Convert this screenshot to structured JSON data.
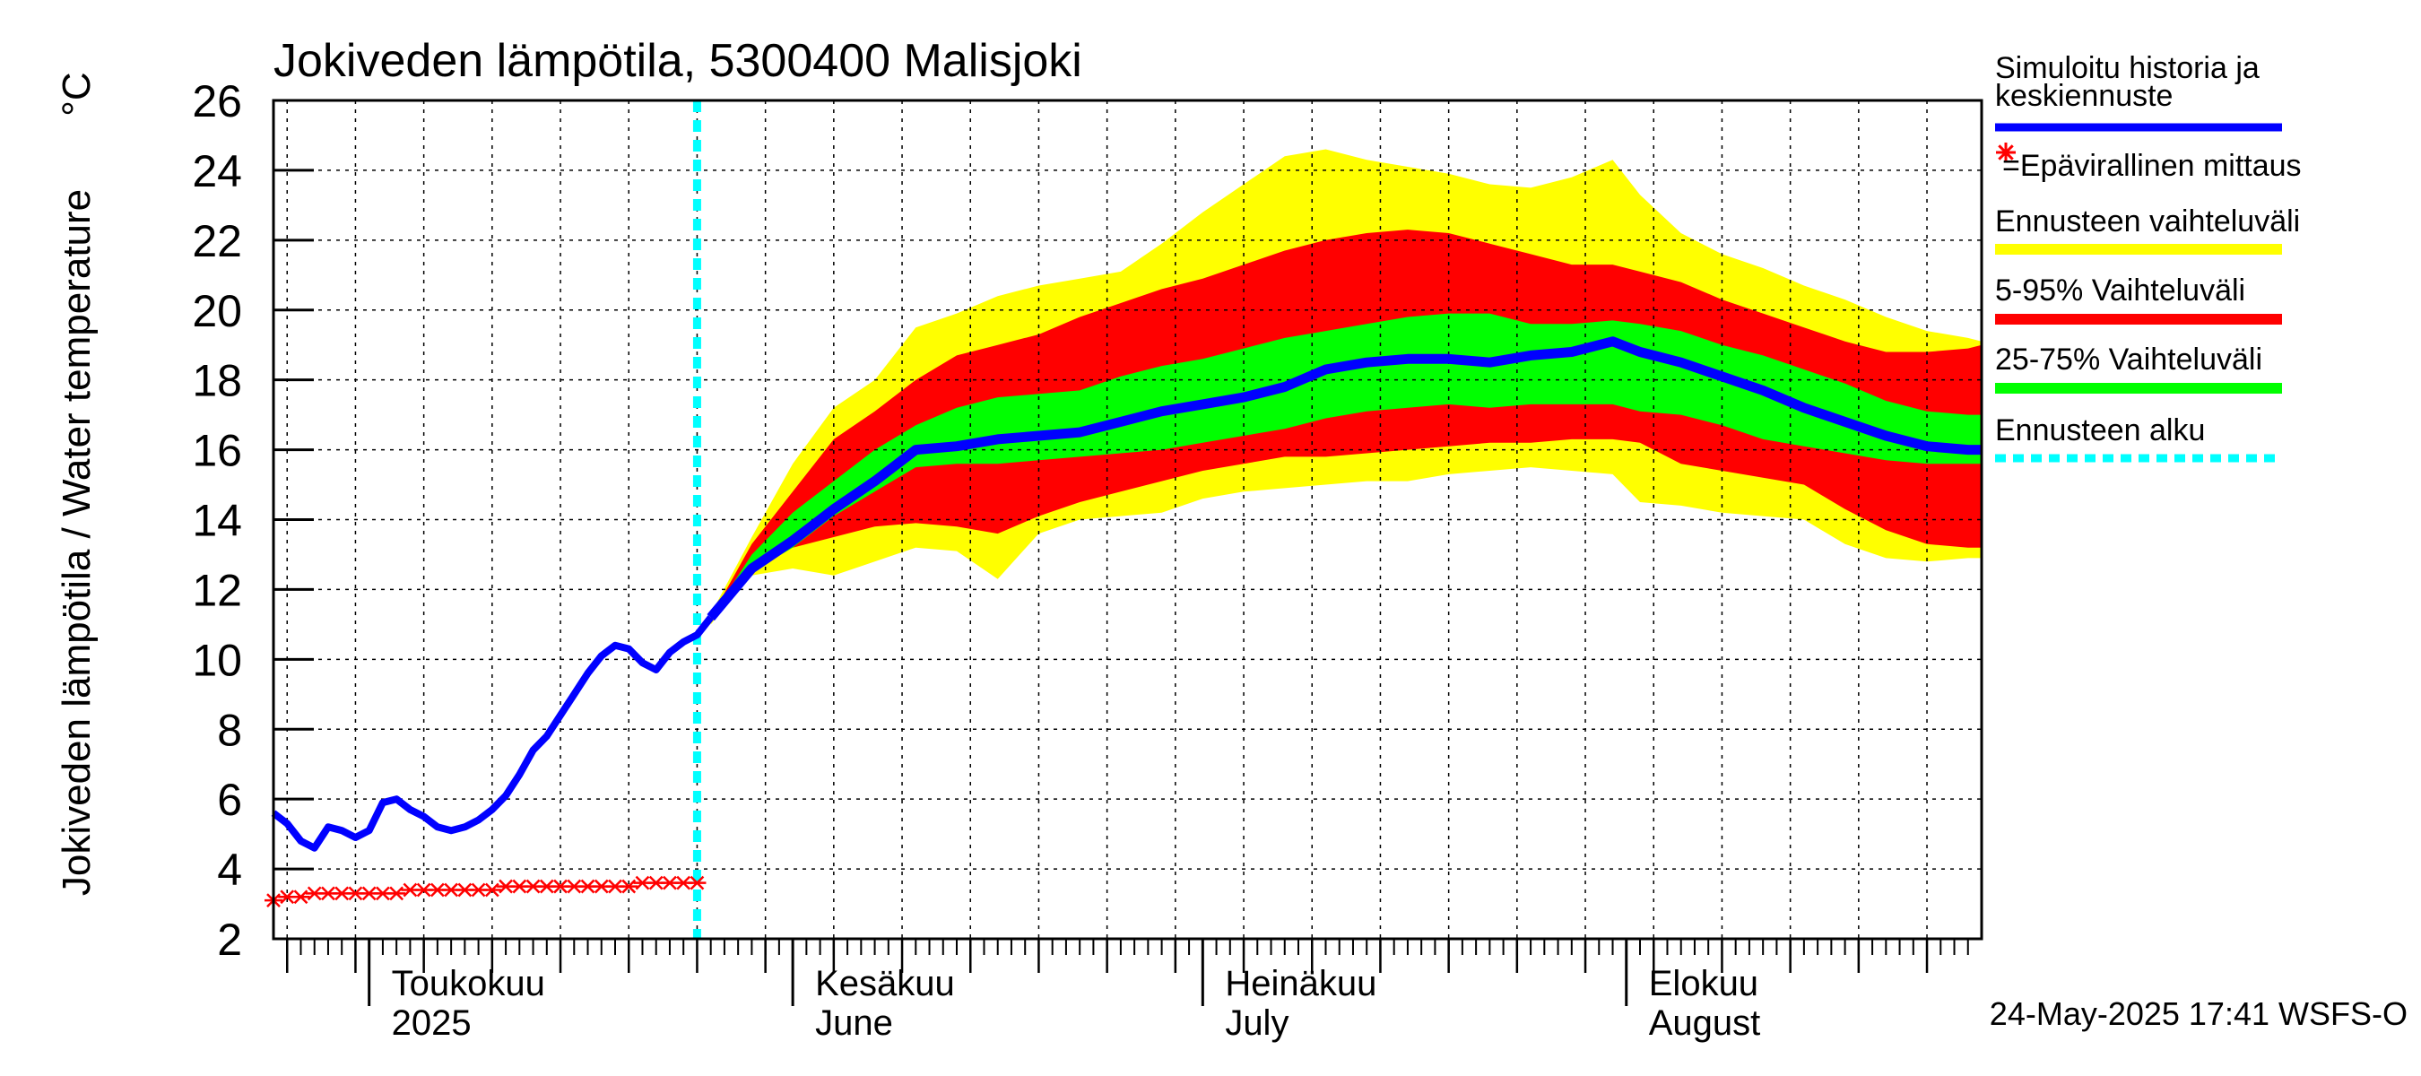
{
  "chart_data": {
    "type": "area",
    "title": "Jokiveden lämpötila, 5300400 Malisjoki",
    "ylabel": "Jokiveden lämpötila / Water temperature",
    "yunit": "°C",
    "ylim": [
      2,
      26
    ],
    "yticks": [
      2,
      4,
      6,
      8,
      10,
      12,
      14,
      16,
      18,
      20,
      22,
      24,
      26
    ],
    "xlim_day": [
      0,
      125
    ],
    "month_labels": [
      {
        "fi": "Toukokuu",
        "en": "2025",
        "day": 7
      },
      {
        "fi": "Kesäkuu",
        "en": "June",
        "day": 38
      },
      {
        "fi": "Heinäkuu",
        "en": "July",
        "day": 68
      },
      {
        "fi": "Elokuu",
        "en": "August",
        "day": 99
      }
    ],
    "month_boundaries_day": [
      7,
      38,
      68,
      99
    ],
    "forecast_start_day": 31,
    "history": {
      "name": "Simuloitu historia ja keskiennuste",
      "color": "#0000ff",
      "x": [
        0,
        1,
        2,
        3,
        4,
        5,
        6,
        7,
        8,
        9,
        10,
        11,
        12,
        13,
        14,
        15,
        16,
        17,
        18,
        19,
        20,
        21,
        22,
        23,
        24,
        25,
        26,
        27,
        28,
        29,
        30,
        31,
        32
      ],
      "y": [
        5.6,
        5.3,
        4.8,
        4.6,
        5.2,
        5.1,
        4.9,
        5.1,
        5.9,
        6.0,
        5.7,
        5.5,
        5.2,
        5.1,
        5.2,
        5.4,
        5.7,
        6.1,
        6.7,
        7.4,
        7.8,
        8.4,
        9.0,
        9.6,
        10.1,
        10.4,
        10.3,
        9.9,
        9.7,
        10.2,
        10.5,
        10.7,
        11.2
      ]
    },
    "median": {
      "name": "keskiennuste",
      "color": "#0000ff",
      "x": [
        32,
        35,
        38,
        41,
        44,
        47,
        50,
        53,
        56,
        59,
        62,
        65,
        68,
        71,
        74,
        77,
        80,
        83,
        86,
        89,
        92,
        95,
        98,
        100,
        103,
        106,
        109,
        112,
        115,
        118,
        121,
        124,
        125
      ],
      "y": [
        11.2,
        12.6,
        13.4,
        14.3,
        15.1,
        16.0,
        16.1,
        16.3,
        16.4,
        16.5,
        16.8,
        17.1,
        17.3,
        17.5,
        17.8,
        18.3,
        18.5,
        18.6,
        18.6,
        18.5,
        18.7,
        18.8,
        19.1,
        18.8,
        18.5,
        18.1,
        17.7,
        17.2,
        16.8,
        16.4,
        16.1,
        16.0,
        16.0
      ]
    },
    "range_full": {
      "name": "Ennusteen vaihteluväli",
      "color": "#ffff00",
      "x": [
        32,
        35,
        38,
        41,
        44,
        47,
        50,
        53,
        56,
        59,
        62,
        65,
        68,
        71,
        74,
        77,
        80,
        83,
        86,
        89,
        92,
        95,
        98,
        100,
        103,
        106,
        109,
        112,
        115,
        118,
        121,
        124,
        125
      ],
      "upper": [
        11.3,
        13.5,
        15.6,
        17.2,
        18.0,
        19.5,
        19.9,
        20.4,
        20.7,
        20.9,
        21.1,
        21.9,
        22.8,
        23.6,
        24.4,
        24.6,
        24.3,
        24.1,
        23.9,
        23.6,
        23.5,
        23.8,
        24.3,
        23.3,
        22.2,
        21.6,
        21.2,
        20.7,
        20.3,
        19.8,
        19.4,
        19.2,
        19.1
      ],
      "lower": [
        11.0,
        12.4,
        12.6,
        12.4,
        12.8,
        13.2,
        13.1,
        12.3,
        13.6,
        14.0,
        14.1,
        14.2,
        14.6,
        14.8,
        14.9,
        15.0,
        15.1,
        15.1,
        15.3,
        15.4,
        15.5,
        15.4,
        15.3,
        14.5,
        14.4,
        14.2,
        14.1,
        14.0,
        13.3,
        12.9,
        12.8,
        12.9,
        12.9
      ]
    },
    "range_5_95": {
      "name": "5-95% Vaihteluväli",
      "color": "#ff0000",
      "x": [
        32,
        35,
        38,
        41,
        44,
        47,
        50,
        53,
        56,
        59,
        62,
        65,
        68,
        71,
        74,
        77,
        80,
        83,
        86,
        89,
        92,
        95,
        98,
        100,
        103,
        106,
        109,
        112,
        115,
        118,
        121,
        124,
        125
      ],
      "upper": [
        11.2,
        13.3,
        14.8,
        16.3,
        17.1,
        18.0,
        18.7,
        19.0,
        19.3,
        19.8,
        20.2,
        20.6,
        20.9,
        21.3,
        21.7,
        22.0,
        22.2,
        22.3,
        22.2,
        21.9,
        21.6,
        21.3,
        21.3,
        21.1,
        20.8,
        20.3,
        19.9,
        19.5,
        19.1,
        18.8,
        18.8,
        18.9,
        19.0
      ],
      "lower": [
        11.1,
        12.8,
        13.2,
        13.5,
        13.8,
        13.9,
        13.8,
        13.6,
        14.1,
        14.5,
        14.8,
        15.1,
        15.4,
        15.6,
        15.8,
        15.8,
        15.9,
        16.0,
        16.1,
        16.2,
        16.2,
        16.3,
        16.3,
        16.2,
        15.6,
        15.4,
        15.2,
        15.0,
        14.3,
        13.7,
        13.3,
        13.2,
        13.2
      ]
    },
    "range_25_75": {
      "name": "25-75% Vaihteluväli",
      "color": "#00ff00",
      "x": [
        32,
        35,
        38,
        41,
        44,
        47,
        50,
        53,
        56,
        59,
        62,
        65,
        68,
        71,
        74,
        77,
        80,
        83,
        86,
        89,
        92,
        95,
        98,
        100,
        103,
        106,
        109,
        112,
        115,
        118,
        121,
        124,
        125
      ],
      "upper": [
        11.2,
        13.0,
        14.2,
        15.1,
        16.0,
        16.7,
        17.2,
        17.5,
        17.6,
        17.7,
        18.1,
        18.4,
        18.6,
        18.9,
        19.2,
        19.4,
        19.6,
        19.8,
        19.9,
        19.9,
        19.6,
        19.6,
        19.7,
        19.6,
        19.4,
        19.0,
        18.7,
        18.3,
        17.9,
        17.4,
        17.1,
        17.0,
        17.0
      ],
      "lower": [
        11.2,
        12.5,
        13.2,
        14.1,
        14.8,
        15.5,
        15.6,
        15.6,
        15.7,
        15.8,
        15.9,
        16.0,
        16.2,
        16.4,
        16.6,
        16.9,
        17.1,
        17.2,
        17.3,
        17.2,
        17.3,
        17.3,
        17.3,
        17.1,
        17.0,
        16.7,
        16.3,
        16.1,
        15.9,
        15.7,
        15.6,
        15.6,
        15.6
      ]
    },
    "measurements": {
      "name": "Epävirallinen mittaus",
      "color": "#ff0000",
      "x": [
        0,
        1,
        2,
        3,
        4,
        5,
        6,
        7,
        8,
        9,
        10,
        11,
        12,
        13,
        14,
        15,
        16,
        17,
        18,
        19,
        20,
        21,
        22,
        23,
        24,
        25,
        26,
        27,
        28,
        29,
        30,
        31
      ],
      "y": [
        3.1,
        3.2,
        3.2,
        3.3,
        3.3,
        3.3,
        3.3,
        3.3,
        3.3,
        3.3,
        3.4,
        3.4,
        3.4,
        3.4,
        3.4,
        3.4,
        3.4,
        3.5,
        3.5,
        3.5,
        3.5,
        3.5,
        3.5,
        3.5,
        3.5,
        3.5,
        3.5,
        3.6,
        3.6,
        3.6,
        3.6,
        3.6
      ]
    },
    "legend": {
      "items": [
        {
          "label": "Simuloitu historia ja keskiennuste",
          "color": "#0000ff",
          "style": "line"
        },
        {
          "label": "=Epävirallinen mittaus",
          "color": "#ff0000",
          "style": "marker"
        },
        {
          "label": "Ennusteen vaihteluväli",
          "color": "#ffff00",
          "style": "line"
        },
        {
          "label": "5-95% Vaihteluväli",
          "color": "#ff0000",
          "style": "line"
        },
        {
          "label": "25-75% Vaihteluväli",
          "color": "#00ff00",
          "style": "line"
        },
        {
          "label": "Ennusteen alku",
          "color": "#00ffff",
          "style": "dotted"
        }
      ],
      "placement": "right"
    },
    "footer": "24-May-2025 17:41 WSFS-O"
  },
  "colors": {
    "grid": "#000000",
    "forecast_line": "#00ffff",
    "median": "#0000ff",
    "measure": "#ff0000"
  }
}
